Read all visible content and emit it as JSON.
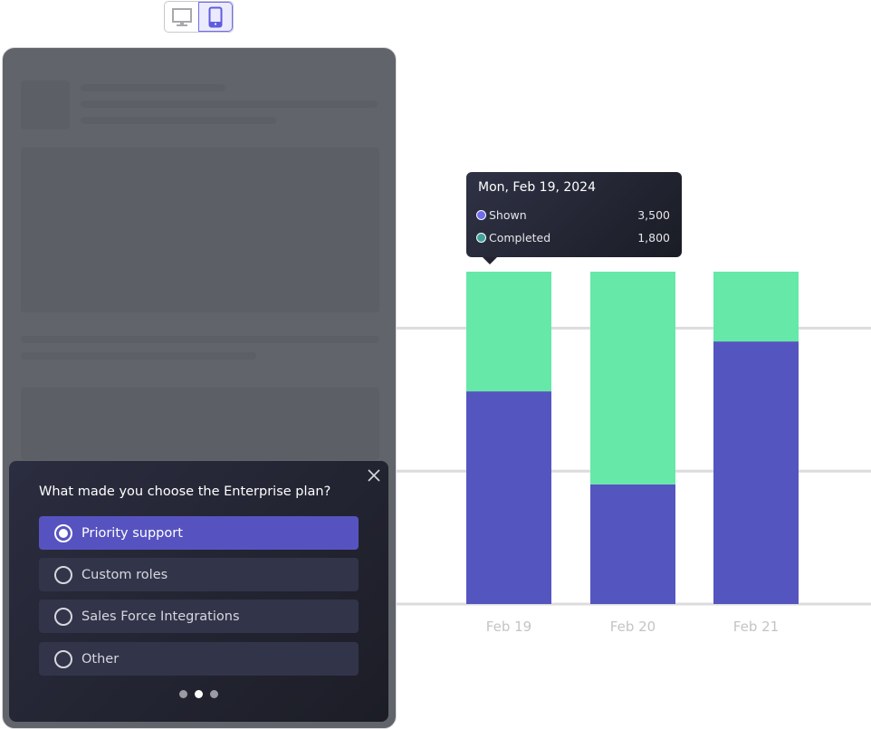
{
  "device_toggle": {
    "options": [
      {
        "icon": "desktop-icon",
        "active": false
      },
      {
        "icon": "mobile-icon",
        "active": true
      }
    ]
  },
  "survey": {
    "question": "What made you choose the Enterprise plan?",
    "options": [
      {
        "label": "Priority support",
        "selected": true
      },
      {
        "label": "Custom roles",
        "selected": false
      },
      {
        "label": "Sales Force Integrations",
        "selected": false
      },
      {
        "label": "Other",
        "selected": false
      }
    ],
    "pagination": {
      "total": 3,
      "current": 2
    },
    "close_icon": "close-icon"
  },
  "tooltip": {
    "title": "Mon, Feb 19, 2024",
    "rows": [
      {
        "label": "Shown",
        "value": "3,500",
        "color": "#6f6cf0"
      },
      {
        "label": "Completed",
        "value": "1,800",
        "color": "#3fa39a"
      }
    ]
  },
  "chart_data": {
    "type": "bar",
    "stacked": true,
    "categories": [
      "Feb 19",
      "Feb 20",
      "Feb 21"
    ],
    "series": [
      {
        "name": "Shown",
        "color": "#5555c0",
        "values": [
          64,
          36,
          79
        ]
      },
      {
        "name": "Completed",
        "color": "#66e8a8",
        "values": [
          36,
          64,
          21
        ]
      }
    ],
    "ylim": [
      0,
      100
    ],
    "grid": true,
    "gridlines": [
      0,
      40,
      83
    ]
  }
}
